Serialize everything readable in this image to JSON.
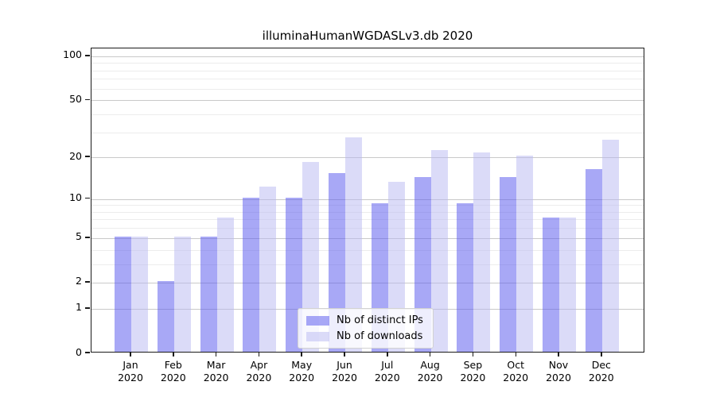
{
  "title": "illuminaHumanWGDASLv3.db 2020",
  "colors": {
    "bar_ips": "rgba(88,88,238,0.52)",
    "bar_downloads": "rgba(183,183,242,0.5)",
    "grid_major": "#c9c9c9",
    "grid_minor": "#ececec",
    "axis": "#1a1a1a"
  },
  "legend": {
    "items": [
      {
        "label": "Nb of distinct IPs",
        "series": "ips"
      },
      {
        "label": "Nb of downloads",
        "series": "downloads"
      }
    ]
  },
  "chart_data": {
    "type": "bar",
    "title": "illuminaHumanWGDASLv3.db 2020",
    "categories": [
      "Jan 2020",
      "Feb 2020",
      "Mar 2020",
      "Apr 2020",
      "May 2020",
      "Jun 2020",
      "Jul 2020",
      "Aug 2020",
      "Sep 2020",
      "Oct 2020",
      "Nov 2020",
      "Dec 2020"
    ],
    "series": [
      {
        "name": "Nb of distinct IPs",
        "values": [
          5,
          2,
          5,
          10,
          10,
          15,
          9,
          14,
          9,
          14,
          7,
          16
        ]
      },
      {
        "name": "Nb of downloads",
        "values": [
          5,
          5,
          7,
          12,
          18,
          27,
          13,
          22,
          21,
          20,
          7,
          26
        ]
      }
    ],
    "xlabel": "",
    "ylabel": "",
    "yscale": "log1p",
    "ylim": [
      0,
      113
    ],
    "yticks_major": [
      0,
      1,
      2,
      5,
      10,
      20,
      50,
      100
    ],
    "yticks_minor": [
      3,
      4,
      6,
      7,
      8,
      9,
      30,
      40,
      60,
      70,
      80,
      90
    ],
    "grid": true,
    "legend_position": "lower center"
  }
}
